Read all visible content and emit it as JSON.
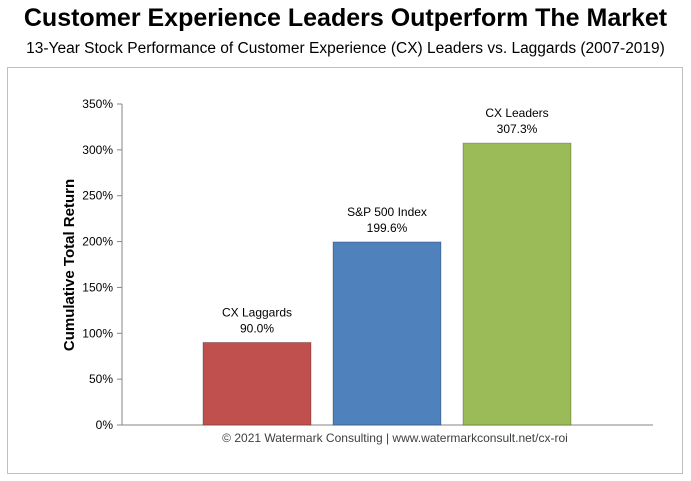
{
  "header": {
    "title": "Customer Experience Leaders Outperform The Market",
    "subtitle": "13-Year Stock Performance of Customer Experience (CX) Leaders vs. Laggards (2007-2019)"
  },
  "credit": "© 2021 Watermark Consulting | www.watermarkconsult.net/cx-roi",
  "chart_data": {
    "type": "bar",
    "title": "Customer Experience Leaders Outperform The Market",
    "subtitle": "13-Year Stock Performance of Customer Experience (CX) Leaders vs. Laggards (2007-2019)",
    "ylabel": "Cumulative Total Return",
    "xlabel": "",
    "categories": [
      "CX Laggards",
      "S&P 500 Index",
      "CX Leaders"
    ],
    "values": [
      90.0,
      199.6,
      307.3
    ],
    "value_labels": [
      "90.0%",
      "199.6%",
      "307.3%"
    ],
    "colors": [
      "#c0504d",
      "#4f81bd",
      "#9bbb59"
    ],
    "ylim": [
      0,
      350
    ],
    "yticks": [
      0,
      50,
      100,
      150,
      200,
      250,
      300,
      350
    ],
    "ytick_labels": [
      "0%",
      "50%",
      "100%",
      "150%",
      "200%",
      "250%",
      "300%",
      "350%"
    ],
    "grid": false,
    "legend": "none"
  }
}
